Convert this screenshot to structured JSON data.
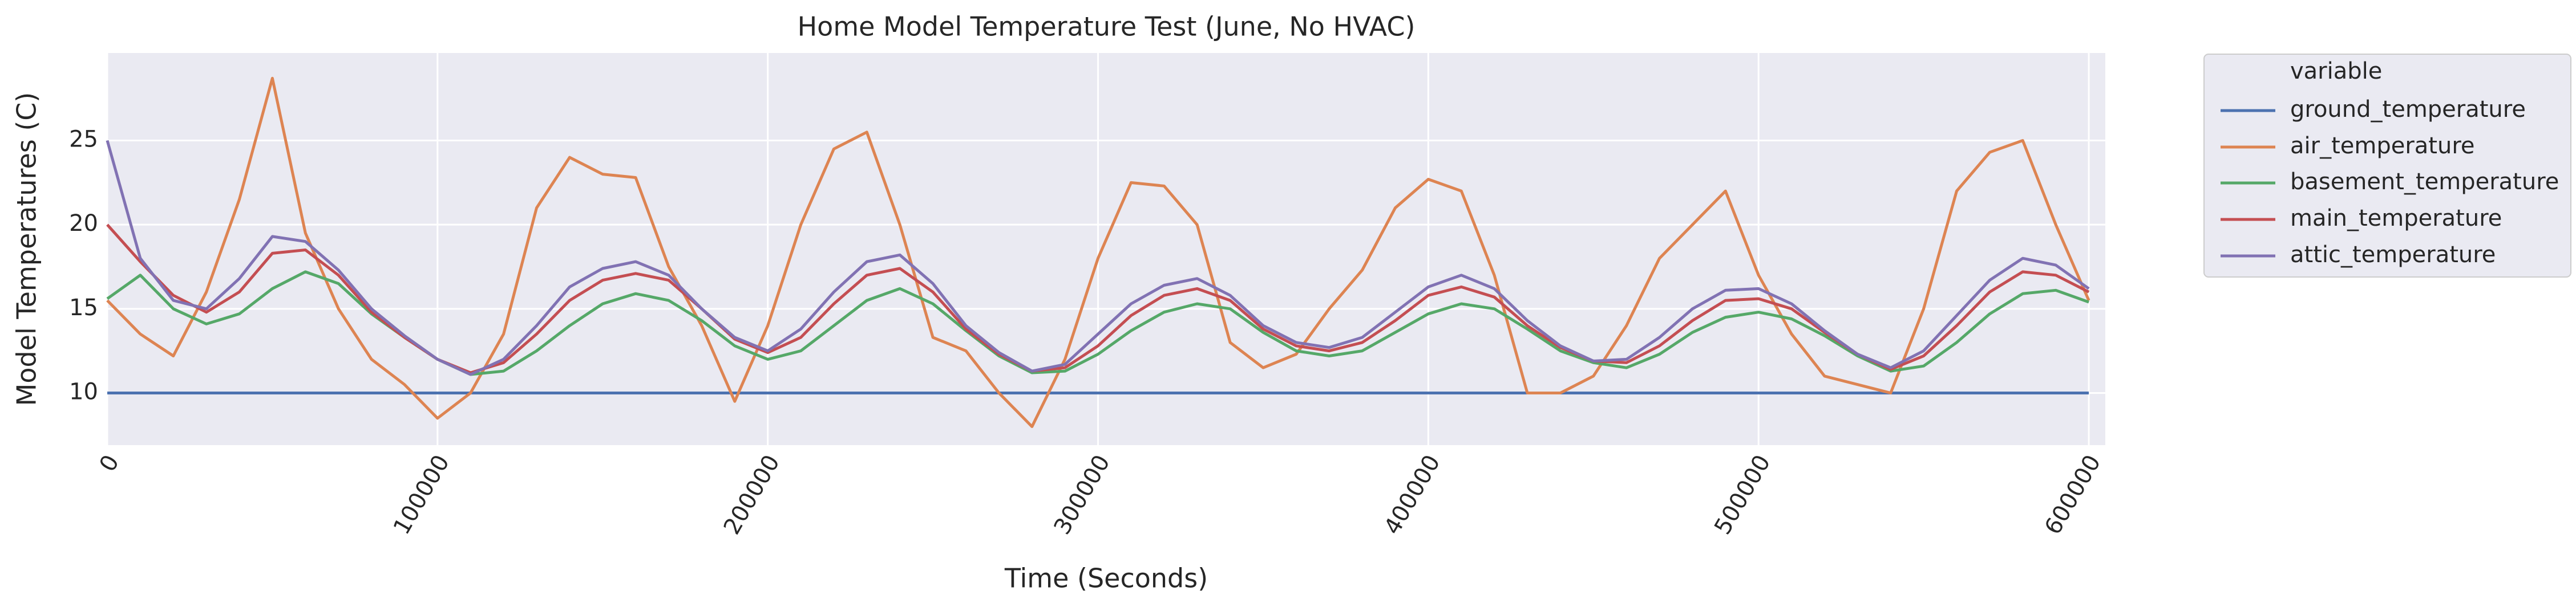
{
  "chart_data": {
    "type": "line",
    "title": "Home Model Temperature Test (June, No HVAC)",
    "xlabel": "Time (Seconds)",
    "ylabel": "Model Temperatures (C)",
    "legend_title": "variable",
    "legend": "outside-upper-right",
    "grid": true,
    "xlim": [
      0,
      605000
    ],
    "ylim": [
      6.9,
      30.2
    ],
    "xticks": [
      0,
      100000,
      200000,
      300000,
      400000,
      500000,
      600000
    ],
    "yticks": [
      10,
      15,
      20,
      25
    ],
    "x": [
      0,
      10000,
      20000,
      30000,
      40000,
      50000,
      60000,
      70000,
      80000,
      90000,
      100000,
      110000,
      120000,
      130000,
      140000,
      150000,
      160000,
      170000,
      180000,
      190000,
      200000,
      210000,
      220000,
      230000,
      240000,
      250000,
      260000,
      270000,
      280000,
      290000,
      300000,
      310000,
      320000,
      330000,
      340000,
      350000,
      360000,
      370000,
      380000,
      390000,
      400000,
      410000,
      420000,
      430000,
      440000,
      450000,
      460000,
      470000,
      480000,
      490000,
      500000,
      510000,
      520000,
      530000,
      540000,
      550000,
      560000,
      570000,
      580000,
      590000,
      600000
    ],
    "series": [
      {
        "name": "ground_temperature",
        "color": "#4c72b0",
        "values": [
          10,
          10,
          10,
          10,
          10,
          10,
          10,
          10,
          10,
          10,
          10,
          10,
          10,
          10,
          10,
          10,
          10,
          10,
          10,
          10,
          10,
          10,
          10,
          10,
          10,
          10,
          10,
          10,
          10,
          10,
          10,
          10,
          10,
          10,
          10,
          10,
          10,
          10,
          10,
          10,
          10,
          10,
          10,
          10,
          10,
          10,
          10,
          10,
          10,
          10,
          10,
          10,
          10,
          10,
          10,
          10,
          10,
          10,
          10,
          10,
          10
        ]
      },
      {
        "name": "air_temperature",
        "color": "#dd8452",
        "values": [
          15.5,
          13.5,
          12.2,
          16,
          21.5,
          28.7,
          19.5,
          15,
          12,
          10.5,
          8.5,
          10,
          13.5,
          21,
          24,
          23,
          22.8,
          17.5,
          14,
          9.5,
          14,
          20,
          24.5,
          25.5,
          20,
          13.3,
          12.5,
          10,
          8,
          12,
          18,
          22.5,
          22.3,
          20,
          13,
          11.5,
          12.3,
          15,
          17.3,
          21,
          22.7,
          22,
          17,
          10,
          10,
          11,
          14,
          18,
          20,
          22,
          17,
          13.5,
          11,
          10.5,
          10,
          15,
          22,
          24.3,
          25,
          20,
          15.5
        ]
      },
      {
        "name": "basement_temperature",
        "color": "#55a868",
        "values": [
          15.6,
          17,
          15,
          14.1,
          14.7,
          16.2,
          17.2,
          16.5,
          14.7,
          13.3,
          12,
          11.1,
          11.3,
          12.5,
          14,
          15.3,
          15.9,
          15.5,
          14.3,
          12.8,
          12,
          12.5,
          14,
          15.5,
          16.2,
          15.3,
          13.7,
          12.2,
          11.2,
          11.3,
          12.3,
          13.7,
          14.8,
          15.3,
          15,
          13.6,
          12.5,
          12.2,
          12.5,
          13.6,
          14.7,
          15.3,
          15,
          13.8,
          12.5,
          11.8,
          11.5,
          12.3,
          13.6,
          14.5,
          14.8,
          14.4,
          13.4,
          12.2,
          11.3,
          11.6,
          13,
          14.7,
          15.9,
          16.1,
          15.4
        ]
      },
      {
        "name": "main_temperature",
        "color": "#c44e52",
        "values": [
          20,
          17.8,
          15.8,
          14.8,
          16,
          18.3,
          18.5,
          17,
          14.8,
          13.3,
          12,
          11.2,
          11.8,
          13.5,
          15.5,
          16.7,
          17.1,
          16.7,
          15,
          13.2,
          12.4,
          13.3,
          15.3,
          17,
          17.4,
          16,
          13.8,
          12.3,
          11.3,
          11.5,
          12.8,
          14.6,
          15.8,
          16.2,
          15.5,
          13.8,
          12.8,
          12.5,
          13,
          14.3,
          15.8,
          16.3,
          15.7,
          14,
          12.7,
          11.9,
          11.8,
          12.8,
          14.3,
          15.5,
          15.6,
          15,
          13.6,
          12.3,
          11.4,
          12.2,
          14,
          16,
          17.2,
          17,
          16
        ]
      },
      {
        "name": "attic_temperature",
        "color": "#8172b3",
        "values": [
          25,
          18,
          15.5,
          15,
          16.8,
          19.3,
          19,
          17.3,
          15,
          13.4,
          12,
          11.1,
          12,
          14,
          16.3,
          17.4,
          17.8,
          17,
          15,
          13.3,
          12.5,
          13.8,
          16,
          17.8,
          18.2,
          16.5,
          14,
          12.4,
          11.3,
          11.7,
          13.5,
          15.3,
          16.4,
          16.8,
          15.8,
          14,
          13,
          12.7,
          13.3,
          14.8,
          16.3,
          17,
          16.2,
          14.3,
          12.8,
          11.9,
          12,
          13.3,
          15,
          16.1,
          16.2,
          15.3,
          13.7,
          12.3,
          11.5,
          12.5,
          14.6,
          16.7,
          18,
          17.6,
          16.2
        ]
      }
    ]
  }
}
